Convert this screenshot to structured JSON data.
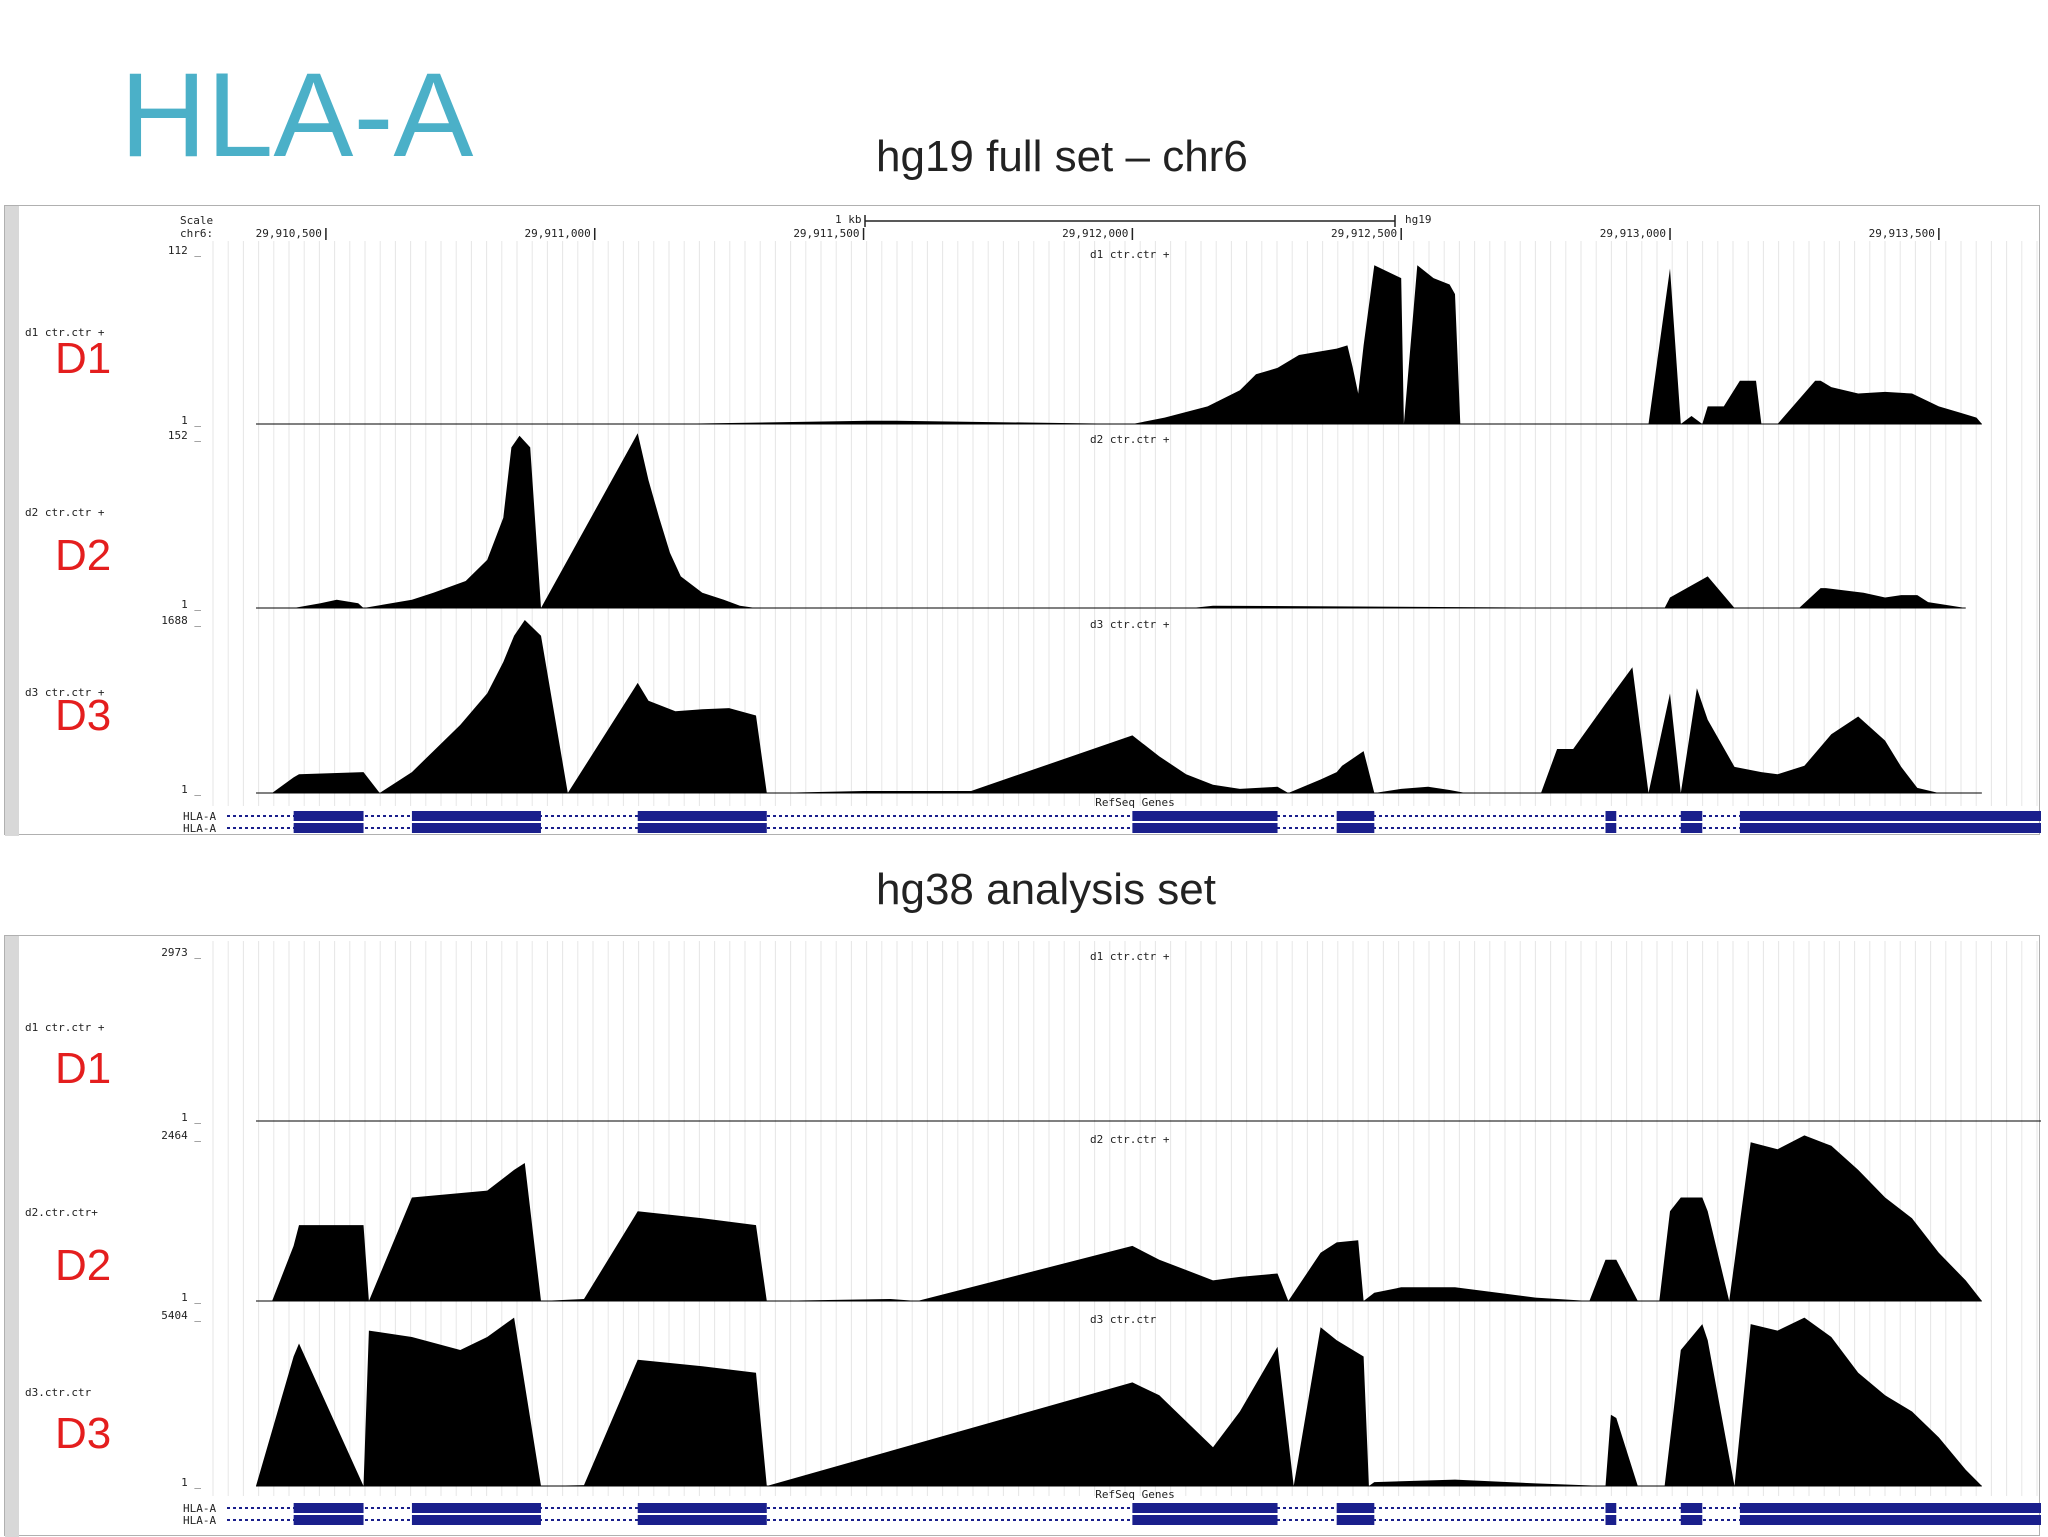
{
  "slide": {
    "title": "HLA-A",
    "panel1_heading": "hg19 full set – chr6",
    "panel2_heading": "hg38 analysis set"
  },
  "colors": {
    "title": "#4bb0c8",
    "donor_label": "#e41e1e",
    "coverage": "#000000",
    "gene_model": "#1a1f8c"
  },
  "panel1": {
    "scale_label": "Scale",
    "chrom_label": "chr6:",
    "scale_bar_label": "1 kb",
    "assembly": "hg19",
    "positions": [
      "29,910,500",
      "29,911,000",
      "29,911,500",
      "29,912,000",
      "29,912,500",
      "29,913,000",
      "29,913,500"
    ],
    "genes_track": "RefSeq Genes",
    "gene_rows": [
      "HLA-A",
      "HLA-A"
    ],
    "tracks": [
      {
        "donor": "D1",
        "name": "d1 ctr.ctr +",
        "max": "112",
        "min": "1"
      },
      {
        "donor": "D2",
        "name": "d2 ctr.ctr +",
        "max": "152",
        "min": "1"
      },
      {
        "donor": "D3",
        "name": "d3 ctr.ctr +",
        "max": "1688",
        "min": "1"
      }
    ]
  },
  "panel2": {
    "genes_track": "RefSeq Genes",
    "gene_rows": [
      "HLA-A",
      "HLA-A"
    ],
    "tracks": [
      {
        "donor": "D1",
        "name": "d1 ctr.ctr +",
        "max": "2973",
        "min": "1"
      },
      {
        "donor": "D2",
        "name": "d2.ctr.ctr+",
        "center_name": "d2 ctr.ctr +",
        "max": "2464",
        "min": "1"
      },
      {
        "donor": "D3",
        "name": "d3.ctr.ctr",
        "center_name": "d3 ctr.ctr",
        "max": "5404",
        "min": "1"
      }
    ]
  },
  "chart_data": [
    {
      "type": "area",
      "title": "hg19 full set – chr6",
      "x_unit": "chr6 position (bp)",
      "xlim": [
        29910290,
        29913690
      ],
      "series": [
        {
          "name": "d1 ctr.ctr +",
          "ylim": [
            1,
            112
          ],
          "x": [
            29910370,
            29910440,
            29910570,
            29910660,
            29910830,
            29910900,
            29911080,
            29911130,
            29911510,
            29911560,
            29912000,
            29912060,
            29912140,
            29912200,
            29912230,
            29912270,
            29912310,
            29912380,
            29912400,
            29912410,
            29912420,
            29912430,
            29912450,
            29912500,
            29912505,
            29912530,
            29912560,
            29912590,
            29912600,
            29912610,
            29912650,
            29912700,
            29912750,
            29912800,
            29912880,
            29912900,
            29912960,
            29913000,
            29913020,
            29913040,
            29913060,
            29913070,
            29913100,
            29913130,
            29913160,
            29913170,
            29913200,
            29913270,
            29913280,
            29913300,
            29913350,
            29913400,
            29913450,
            29913500,
            29913540,
            29913570,
            29913580
          ],
          "values": [
            1,
            1,
            1,
            1,
            1,
            1,
            1,
            1,
            3,
            3,
            1,
            5,
            12,
            22,
            32,
            36,
            44,
            48,
            50,
            36,
            20,
            50,
            100,
            92,
            1,
            100,
            92,
            88,
            82,
            1,
            1,
            1,
            1,
            1,
            1,
            1,
            1,
            98,
            1,
            6,
            1,
            12,
            12,
            28,
            28,
            1,
            1,
            28,
            28,
            24,
            20,
            21,
            20,
            12,
            8,
            5,
            1
          ]
        },
        {
          "name": "d2 ctr.ctr +",
          "ylim": [
            1,
            152
          ],
          "x": [
            29910370,
            29910440,
            29910490,
            29910520,
            29910560,
            29910570,
            29910660,
            29910700,
            29910760,
            29910800,
            29910830,
            29910845,
            29910860,
            29910880,
            29910900,
            29911080,
            29911100,
            29911120,
            29911140,
            29911160,
            29911200,
            29911240,
            29911270,
            29911300,
            29911310,
            29911460,
            29912110,
            29912150,
            29912910,
            29912990,
            29913000,
            29913070,
            29913120,
            29913150,
            29913180,
            29913200,
            29913240,
            29913280,
            29913290,
            29913360,
            29913400,
            29913430,
            29913460,
            29913480,
            29913550
          ],
          "values": [
            1,
            1,
            5,
            8,
            5,
            1,
            8,
            14,
            24,
            42,
            78,
            138,
            148,
            138,
            1,
            150,
            110,
            78,
            48,
            28,
            14,
            8,
            3,
            1,
            1,
            1,
            1,
            3,
            1,
            1,
            10,
            28,
            1,
            1,
            1,
            1,
            1,
            18,
            18,
            14,
            10,
            12,
            12,
            6,
            1
          ]
        },
        {
          "name": "d3 ctr.ctr +",
          "ylim": [
            1,
            1688
          ],
          "x": [
            29910370,
            29910400,
            29910440,
            29910450,
            29910570,
            29910600,
            29910660,
            29910700,
            29910750,
            29910800,
            29910830,
            29910850,
            29910870,
            29910900,
            29910950,
            29911080,
            29911100,
            29911150,
            29911200,
            29911250,
            29911300,
            29911320,
            29911330,
            29911500,
            29911700,
            29912000,
            29912050,
            29912100,
            29912150,
            29912200,
            29912270,
            29912290,
            29912350,
            29912380,
            29912390,
            29912430,
            29912450,
            29912500,
            29912550,
            29912590,
            29912620,
            29912760,
            29912790,
            29912820,
            29912880,
            29912930,
            29912960,
            29913000,
            29913020,
            29913050,
            29913070,
            29913120,
            29913170,
            29913200,
            29913250,
            29913300,
            29913350,
            29913400,
            29913430,
            29913460,
            29913500,
            29913520,
            29913560,
            29913580
          ],
          "values": [
            1,
            1,
            150,
            180,
            200,
            1,
            200,
            400,
            650,
            950,
            1250,
            1500,
            1650,
            1500,
            1,
            1050,
            880,
            780,
            800,
            810,
            740,
            1,
            1,
            20,
            20,
            550,
            350,
            180,
            80,
            40,
            60,
            1,
            130,
            200,
            260,
            400,
            1,
            40,
            60,
            30,
            1,
            1,
            420,
            420,
            850,
            1200,
            1,
            950,
            1,
            1000,
            700,
            250,
            200,
            180,
            260,
            560,
            730,
            500,
            250,
            50,
            1,
            1,
            1,
            1
          ]
        }
      ]
    },
    {
      "type": "area",
      "title": "hg38 analysis set",
      "x_unit": "chr6 position (bp)",
      "xlim": [
        29910290,
        29913690
      ],
      "series": [
        {
          "name": "d1 ctr.ctr +",
          "ylim": [
            1,
            2973
          ],
          "x": [
            29910370,
            29910440,
            29910450,
            29910520,
            29910530,
            29910570,
            29910630,
            29910660,
            29910700,
            29910800,
            29910900,
            29910950,
            29911000,
            29911080,
            29911120,
            29911200,
            29911250,
            29911300,
            29911320,
            29911600,
            29912000,
            29912050,
            29912100,
            29912150,
            29912200,
            29912270,
            29912310,
            29912350,
            29912380,
            29912400,
            29912430,
            29912450,
            29912500,
            29912555,
            29912610,
            29912700,
            29912810,
            29912880,
            29912900,
            29912960,
            29913000,
            29913060,
            29913070,
            29913110,
            29913130,
            29913160,
            29913200,
            29913250,
            29913280,
            29913300,
            29913330,
            29913400,
            29913450,
            29913500,
            29913560,
            29913580,
            29913600,
            29913690
          ],
          "values": [
            1,
            1,
            1,
            1,
            1,
            1,
            1,
            1,
            1,
            1,
            1,
            1,
            1,
            1,
            1,
            1,
            1,
            1,
            1,
            1,
            1,
            1,
            1,
            1,
            1,
            1,
            1,
            1,
            1,
            1,
            1,
            1,
            1,
            1,
            1,
            1,
            1,
            1,
            1,
            1,
            1,
            1,
            1,
            1,
            1,
            1,
            1,
            1,
            1,
            1,
            1,
            1,
            1,
            1,
            1,
            1,
            1,
            1
          ]
        },
        {
          "name": "d2.ctr.ctr+",
          "ylim": [
            1,
            2464
          ],
          "x": [
            29910370,
            29910400,
            29910440,
            29910450,
            29910570,
            29910580,
            29910660,
            29910800,
            29910850,
            29910870,
            29910900,
            29910980,
            29911080,
            29911200,
            29911300,
            29911320,
            29911550,
            29911600,
            29912000,
            29912050,
            29912100,
            29912150,
            29912200,
            29912270,
            29912290,
            29912350,
            29912380,
            29912420,
            29912430,
            29912450,
            29912500,
            29912600,
            29912750,
            29912850,
            29912880,
            29912900,
            29912940,
            29912980,
            29913000,
            29913020,
            29913060,
            29913070,
            29913110,
            29913150,
            29913200,
            29913250,
            29913300,
            29913350,
            29913400,
            29913450,
            29913500,
            29913550,
            29913580
          ],
          "values": [
            1,
            1,
            800,
            1100,
            1100,
            1,
            1500,
            1600,
            1900,
            2000,
            1,
            30,
            1300,
            1200,
            1100,
            1,
            30,
            1,
            800,
            600,
            450,
            300,
            350,
            400,
            1,
            700,
            850,
            880,
            1,
            120,
            200,
            200,
            50,
            1,
            600,
            600,
            1,
            1,
            1300,
            1500,
            1500,
            1300,
            1,
            2300,
            2200,
            2400,
            2250,
            1900,
            1500,
            1200,
            700,
            300,
            1
          ]
        },
        {
          "name": "d3.ctr.ctr",
          "ylim": [
            1,
            5404
          ],
          "x": [
            29910370,
            29910440,
            29910450,
            29910570,
            29910580,
            29910660,
            29910750,
            29910800,
            29910850,
            29910900,
            29910980,
            29911080,
            29911200,
            29911300,
            29911320,
            29912000,
            29912050,
            29912100,
            29912150,
            29912200,
            29912270,
            29912300,
            29912350,
            29912380,
            29912430,
            29912440,
            29912450,
            29912600,
            29912750,
            29912880,
            29912890,
            29912900,
            29912940,
            29912990,
            29913020,
            29913060,
            29913070,
            29913120,
            29913150,
            29913200,
            29913250,
            29913300,
            29913350,
            29913400,
            29913450,
            29913500,
            29913550,
            29913580
          ],
          "values": [
            1,
            4000,
            4400,
            1,
            4800,
            4600,
            4200,
            4600,
            5200,
            1,
            30,
            3900,
            3700,
            3500,
            1,
            3200,
            2800,
            2000,
            1200,
            2300,
            4300,
            1,
            4900,
            4500,
            4000,
            1,
            120,
            200,
            80,
            1,
            2200,
            2100,
            1,
            1,
            4200,
            5000,
            4500,
            1,
            5000,
            4800,
            5200,
            4600,
            3500,
            2800,
            2300,
            1500,
            500,
            1
          ]
        }
      ]
    }
  ]
}
